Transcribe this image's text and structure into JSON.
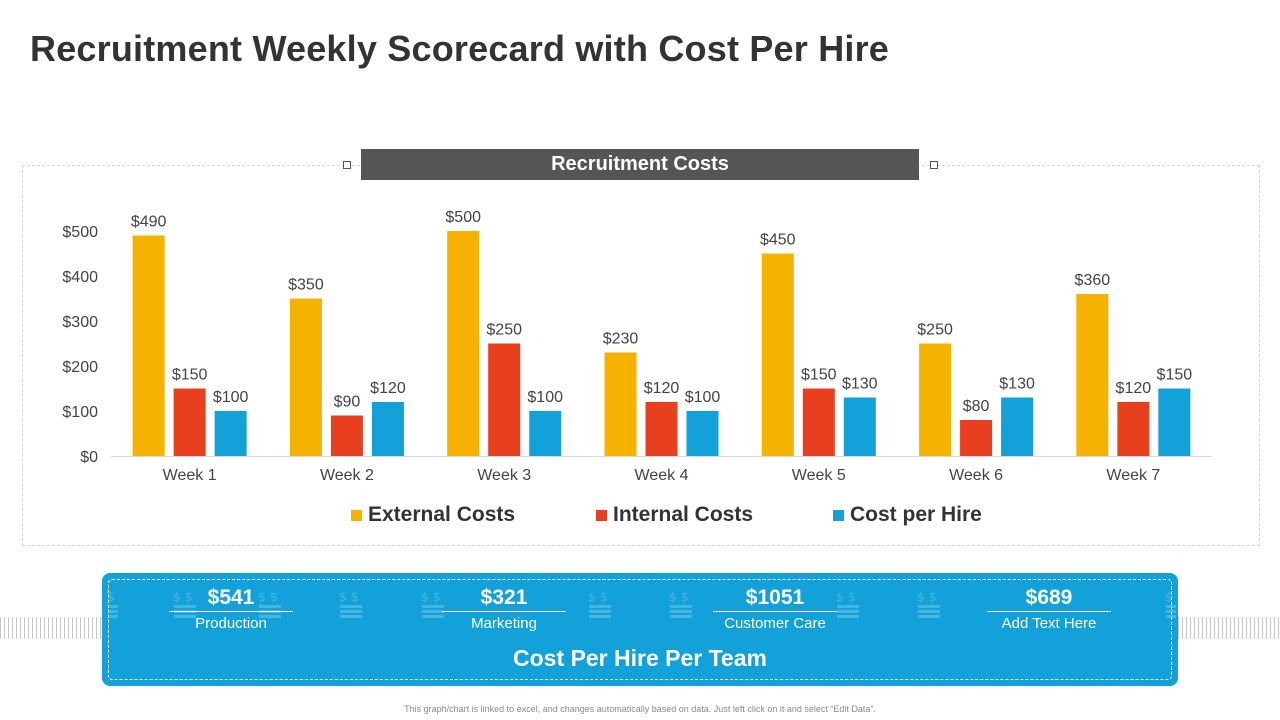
{
  "title": "Recruitment Weekly Scorecard with Cost Per Hire",
  "chart_data": {
    "type": "bar",
    "title": "Recruitment Costs",
    "categories": [
      "Week 1",
      "Week 2",
      "Week 3",
      "Week 4",
      "Week 5",
      "Week 6",
      "Week 7"
    ],
    "series": [
      {
        "name": "External Costs",
        "color": "#f5b300",
        "values": [
          490,
          350,
          500,
          230,
          450,
          250,
          360
        ],
        "labels": [
          "$490",
          "$350",
          "$500",
          "$230",
          "$450",
          "$250",
          "$360"
        ]
      },
      {
        "name": "Internal Costs",
        "color": "#e8401f",
        "values": [
          150,
          90,
          250,
          120,
          150,
          80,
          120
        ],
        "labels": [
          "$150",
          "$90",
          "$250",
          "$120",
          "$150",
          "$80",
          "$120"
        ]
      },
      {
        "name": "Cost per Hire",
        "color": "#12a2d9",
        "values": [
          100,
          120,
          100,
          100,
          130,
          130,
          150
        ],
        "labels": [
          "$100",
          "$120",
          "$100",
          "$100",
          "$130",
          "$130",
          "$150"
        ]
      }
    ],
    "y_ticks": [
      0,
      100,
      200,
      300,
      400,
      500
    ],
    "y_tick_labels": [
      "$0",
      "$100",
      "$200",
      "$300",
      "$400",
      "$500"
    ],
    "ylim": [
      0,
      500
    ],
    "xlabel": "",
    "ylabel": "",
    "legend_position": "bottom",
    "grid": false
  },
  "team_panel": {
    "title": "Cost Per Hire Per Team",
    "stats": [
      {
        "value": "$541",
        "label": "Production"
      },
      {
        "value": "$321",
        "label": "Marketing"
      },
      {
        "value": "$1051",
        "label": "Customer Care"
      },
      {
        "value": "$689",
        "label": "Add Text Here"
      }
    ]
  },
  "footnote": "This graph/chart is linked to excel, and changes automatically based on data. Just left click on it and select “Edit Data”.",
  "colors": {
    "panel": "#12a2d9",
    "header": "#555555",
    "external": "#f5b300",
    "internal": "#e8401f",
    "cost_per_hire": "#12a2d9"
  }
}
